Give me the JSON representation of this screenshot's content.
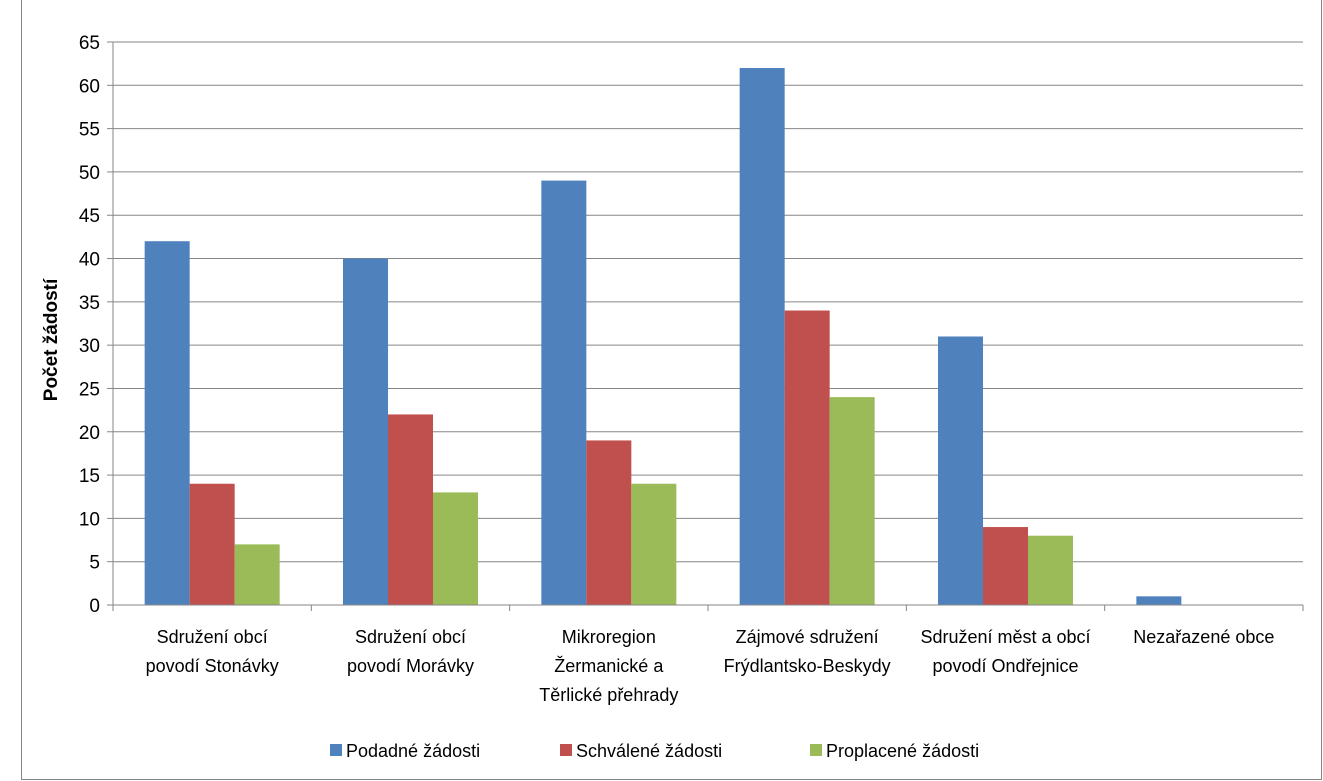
{
  "chart_data": {
    "type": "bar",
    "title": "",
    "ylabel": "Počet žádostí",
    "xlabel": "",
    "ylim": [
      0,
      65
    ],
    "ytick_step": 5,
    "grid": true,
    "legend_position": "bottom",
    "categories": [
      [
        "Sdružení obcí",
        "povodí Stonávky"
      ],
      [
        "Sdružení obcí",
        "povodí Morávky"
      ],
      [
        "Mikroregion",
        "Žermanické a",
        "Těrlické přehrady"
      ],
      [
        "Zájmové sdružení",
        "Frýdlantsko-Beskydy"
      ],
      [
        "Sdružení měst a obcí",
        "povodí Ondřejnice"
      ],
      [
        "Nezařazené obce"
      ]
    ],
    "series": [
      {
        "name": "Podadné žádosti",
        "color": "#4F81BD",
        "values": [
          42,
          40,
          49,
          62,
          31,
          1
        ]
      },
      {
        "name": "Schválené žádosti",
        "color": "#C0504D",
        "values": [
          14,
          22,
          19,
          34,
          9,
          0
        ]
      },
      {
        "name": "Proplacené žádosti",
        "color": "#9BBB59",
        "values": [
          7,
          13,
          14,
          24,
          8,
          0
        ]
      }
    ]
  }
}
